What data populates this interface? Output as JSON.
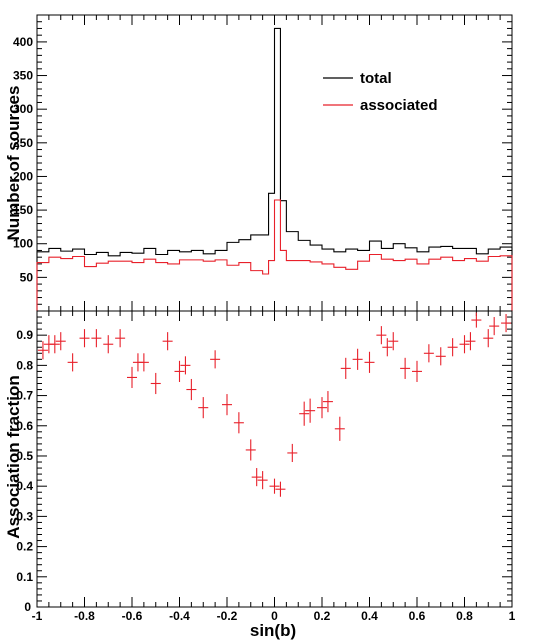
{
  "colors": {
    "total": "#000000",
    "associated": "#e8202a",
    "frame": "#000000"
  },
  "chart_data": [
    {
      "type": "histogram",
      "ylabel": "Number of sources",
      "xlim": [
        -1,
        1
      ],
      "ylim": [
        0,
        440
      ],
      "y_ticks": [
        "50",
        "100",
        "150",
        "200",
        "250",
        "300",
        "350",
        "400"
      ],
      "legend": {
        "placement": "top-right",
        "entries": [
          "total",
          "associated"
        ]
      },
      "bin_edges": [
        -1,
        -0.95,
        -0.9,
        -0.85,
        -0.8,
        -0.75,
        -0.7,
        -0.65,
        -0.6,
        -0.55,
        -0.5,
        -0.45,
        -0.4,
        -0.35,
        -0.3,
        -0.25,
        -0.2,
        -0.15,
        -0.1,
        -0.05,
        -0.025,
        0,
        0.025,
        0.05,
        0.1,
        0.15,
        0.2,
        0.25,
        0.3,
        0.35,
        0.4,
        0.45,
        0.5,
        0.55,
        0.6,
        0.65,
        0.7,
        0.75,
        0.8,
        0.85,
        0.9,
        0.95,
        1
      ],
      "series": [
        {
          "name": "total",
          "values": [
            88,
            93,
            89,
            92,
            84,
            87,
            82,
            87,
            86,
            93,
            84,
            90,
            88,
            90,
            85,
            90,
            102,
            106,
            113,
            113,
            175,
            420,
            164,
            118,
            105,
            98,
            92,
            88,
            92,
            90,
            104,
            93,
            100,
            94,
            88,
            95,
            96,
            93,
            93,
            85,
            92,
            95
          ]
        },
        {
          "name": "associated",
          "values": [
            72,
            80,
            78,
            81,
            66,
            71,
            74,
            74,
            72,
            77,
            72,
            70,
            76,
            76,
            74,
            76,
            68,
            72,
            60,
            55,
            75,
            165,
            90,
            75,
            75,
            73,
            70,
            65,
            62,
            74,
            84,
            77,
            75,
            77,
            70,
            77,
            80,
            75,
            78,
            74,
            81,
            82
          ]
        }
      ]
    },
    {
      "type": "scatter",
      "xlabel": "sin(b)",
      "ylabel": "Association fraction",
      "xlim": [
        -1,
        1
      ],
      "ylim": [
        0,
        0.98
      ],
      "x_ticks": [
        "-1",
        "-0.8",
        "-0.6",
        "-0.4",
        "-0.2",
        "0",
        "0.2",
        "0.4",
        "0.6",
        "0.8",
        "1"
      ],
      "y_ticks": [
        "0.1",
        "0.2",
        "0.3",
        "0.4",
        "0.5",
        "0.6",
        "0.7",
        "0.8",
        "0.9"
      ],
      "series": [
        {
          "name": "associated",
          "points": [
            {
              "x": -0.975,
              "y": 0.85,
              "err": 0.03
            },
            {
              "x": -0.95,
              "y": 0.87,
              "err": 0.03
            },
            {
              "x": -0.925,
              "y": 0.87,
              "err": 0.03
            },
            {
              "x": -0.9,
              "y": 0.88,
              "err": 0.03
            },
            {
              "x": -0.85,
              "y": 0.81,
              "err": 0.03
            },
            {
              "x": -0.8,
              "y": 0.89,
              "err": 0.03
            },
            {
              "x": -0.75,
              "y": 0.89,
              "err": 0.03
            },
            {
              "x": -0.7,
              "y": 0.87,
              "err": 0.03
            },
            {
              "x": -0.65,
              "y": 0.89,
              "err": 0.03
            },
            {
              "x": -0.6,
              "y": 0.76,
              "err": 0.035
            },
            {
              "x": -0.575,
              "y": 0.81,
              "err": 0.03
            },
            {
              "x": -0.55,
              "y": 0.81,
              "err": 0.03
            },
            {
              "x": -0.5,
              "y": 0.74,
              "err": 0.035
            },
            {
              "x": -0.45,
              "y": 0.88,
              "err": 0.03
            },
            {
              "x": -0.4,
              "y": 0.78,
              "err": 0.035
            },
            {
              "x": -0.375,
              "y": 0.8,
              "err": 0.03
            },
            {
              "x": -0.35,
              "y": 0.72,
              "err": 0.035
            },
            {
              "x": -0.3,
              "y": 0.66,
              "err": 0.035
            },
            {
              "x": -0.25,
              "y": 0.82,
              "err": 0.03
            },
            {
              "x": -0.2,
              "y": 0.67,
              "err": 0.035
            },
            {
              "x": -0.15,
              "y": 0.61,
              "err": 0.035
            },
            {
              "x": -0.1,
              "y": 0.52,
              "err": 0.035
            },
            {
              "x": -0.075,
              "y": 0.43,
              "err": 0.03
            },
            {
              "x": -0.05,
              "y": 0.42,
              "err": 0.03
            },
            {
              "x": 0,
              "y": 0.4,
              "err": 0.025
            },
            {
              "x": 0.025,
              "y": 0.39,
              "err": 0.025
            },
            {
              "x": 0.075,
              "y": 0.51,
              "err": 0.03
            },
            {
              "x": 0.125,
              "y": 0.64,
              "err": 0.04
            },
            {
              "x": 0.15,
              "y": 0.65,
              "err": 0.04
            },
            {
              "x": 0.2,
              "y": 0.66,
              "err": 0.035
            },
            {
              "x": 0.225,
              "y": 0.68,
              "err": 0.035
            },
            {
              "x": 0.275,
              "y": 0.59,
              "err": 0.04
            },
            {
              "x": 0.3,
              "y": 0.79,
              "err": 0.035
            },
            {
              "x": 0.35,
              "y": 0.82,
              "err": 0.035
            },
            {
              "x": 0.4,
              "y": 0.81,
              "err": 0.035
            },
            {
              "x": 0.45,
              "y": 0.9,
              "err": 0.03
            },
            {
              "x": 0.475,
              "y": 0.86,
              "err": 0.03
            },
            {
              "x": 0.5,
              "y": 0.88,
              "err": 0.03
            },
            {
              "x": 0.55,
              "y": 0.79,
              "err": 0.035
            },
            {
              "x": 0.6,
              "y": 0.78,
              "err": 0.035
            },
            {
              "x": 0.65,
              "y": 0.84,
              "err": 0.03
            },
            {
              "x": 0.7,
              "y": 0.83,
              "err": 0.03
            },
            {
              "x": 0.75,
              "y": 0.86,
              "err": 0.03
            },
            {
              "x": 0.8,
              "y": 0.87,
              "err": 0.03
            },
            {
              "x": 0.825,
              "y": 0.88,
              "err": 0.03
            },
            {
              "x": 0.85,
              "y": 0.95,
              "err": 0.025
            },
            {
              "x": 0.9,
              "y": 0.89,
              "err": 0.03
            },
            {
              "x": 0.925,
              "y": 0.93,
              "err": 0.03
            },
            {
              "x": 0.975,
              "y": 0.94,
              "err": 0.03
            }
          ]
        }
      ]
    }
  ]
}
